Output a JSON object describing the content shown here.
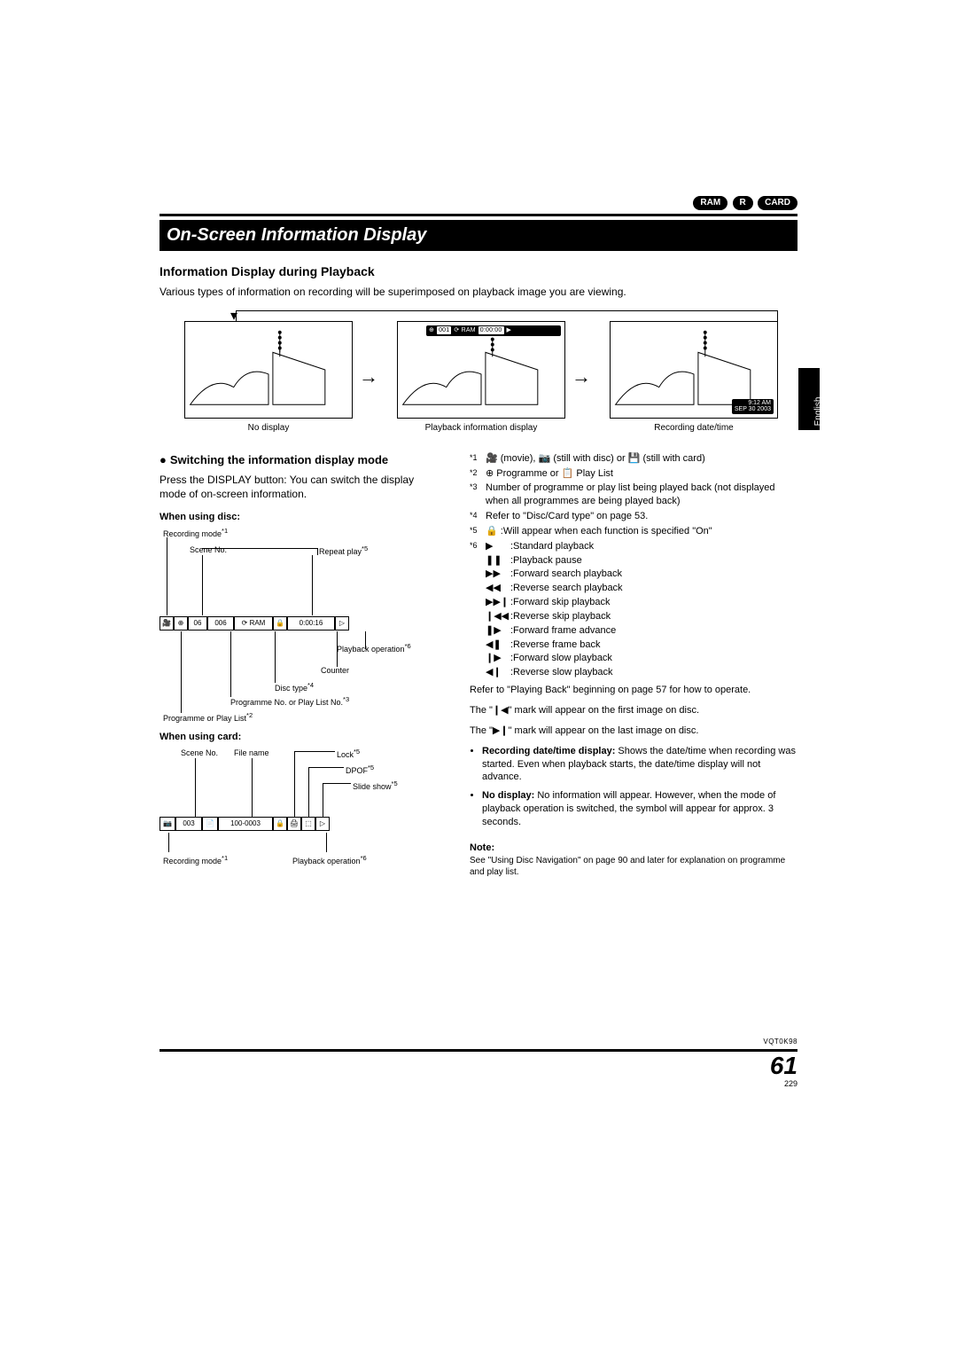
{
  "badges": {
    "ram": "RAM",
    "r": "R",
    "card": "CARD"
  },
  "title": "On-Screen Information Display",
  "section": "Information Display during Playback",
  "intro": "Various types of information on recording will be superimposed on playback image you are viewing.",
  "side_tab": "English",
  "captions": {
    "no_display": "No display",
    "playback_info": "Playback information display",
    "rec_datetime": "Recording date/time"
  },
  "banner": {
    "seg1": "⊕",
    "seg2": "001",
    "seg3": "⟳ RAM",
    "seg4": "0:00:00",
    "play": "▶"
  },
  "date_tag": {
    "line1": "9:12 AM",
    "line2": "SEP 30 2003"
  },
  "subheading": "Switching the information display mode",
  "sub_body": "Press the DISPLAY button: You can switch the display mode of on-screen information.",
  "disc_heading": "When using disc:",
  "disc_labels": {
    "recmode": "Recording mode",
    "recmode_sup": "*1",
    "scene": "Scene No.",
    "repeat": "Repeat play",
    "repeat_sup": "*5",
    "playop": "Playback operation",
    "playop_sup": "*6",
    "counter": "Counter",
    "disctype": "Disc type",
    "disctype_sup": "*4",
    "progno": "Programme No. or Play List No.",
    "progno_sup": "*3",
    "proglist": "Programme or Play List",
    "proglist_sup": "*2"
  },
  "disc_bar": {
    "c1": "🎥",
    "c2": "⊕",
    "c3": "06",
    "c4": "006",
    "c5": "⟳ RAM",
    "c6": "🔒",
    "c7": "0:00:16",
    "c8": "▷"
  },
  "card_heading": "When using card:",
  "card_labels": {
    "scene": "Scene No.",
    "file": "File name",
    "lock": "Lock",
    "lock_sup": "*5",
    "dpof": "DPOF",
    "dpof_sup": "*5",
    "slide": "Slide show",
    "slide_sup": "*5",
    "recmode": "Recording mode",
    "recmode_sup": "*1",
    "playop": "Playback operation",
    "playop_sup": "*6"
  },
  "card_bar": {
    "c1": "📷",
    "c2": "003",
    "c3": "📄",
    "c4": "100-0003",
    "c5": "🔒",
    "c6": "🖨",
    "c7": "⬚",
    "c8": "▷"
  },
  "footnotes": {
    "f1": {
      "sup": "*1",
      "text_a": "(movie),",
      "text_b": "(still with disc) or",
      "text_c": "(still with card)"
    },
    "f2": {
      "sup": "*2",
      "text": "⊕ Programme or 📋 Play List"
    },
    "f3": {
      "sup": "*3",
      "text": "Number of programme or play list being played back (not displayed when all programmes are being played back)"
    },
    "f4": {
      "sup": "*4",
      "text": "Refer to \"Disc/Card type\" on page 53."
    },
    "f5": {
      "sup": "*5",
      "text": ":Will appear when each function is specified \"On\""
    },
    "f6": {
      "sup": "*6"
    }
  },
  "iconlist": [
    {
      "icon": "▶",
      "text": ":Standard playback"
    },
    {
      "icon": "❚❚",
      "text": ":Playback pause"
    },
    {
      "icon": "▶▶",
      "text": ":Forward search playback"
    },
    {
      "icon": "◀◀",
      "text": ":Reverse search playback"
    },
    {
      "icon": "▶▶❙",
      "text": ":Forward skip playback"
    },
    {
      "icon": "❙◀◀",
      "text": ":Reverse skip playback"
    },
    {
      "icon": "❚▶",
      "text": ":Forward frame advance"
    },
    {
      "icon": "◀❚",
      "text": ":Reverse frame back"
    },
    {
      "icon": "❙▶",
      "text": ":Forward slow playback"
    },
    {
      "icon": "◀❙",
      "text": ":Reverse slow playback"
    }
  ],
  "refer_text": "Refer to \"Playing Back\" beginning on page 57 for how to operate.",
  "mark_first": "The \"❙◀\" mark will appear on the first image on disc.",
  "mark_last": "The \"▶❙\" mark will appear on the last image on disc.",
  "bullets": {
    "b1_head": "Recording date/time display:",
    "b1_body": " Shows the date/time when recording was started. Even when playback starts, the date/time display will not advance.",
    "b2_head": "No display:",
    "b2_body": " No information will appear. However, when the mode of playback operation is switched, the symbol will appear for approx. 3 seconds."
  },
  "note_h": "Note:",
  "note_t": "See \"Using Disc Navigation\" on page 90 and later for explanation on programme and play list.",
  "footer": {
    "docno": "VQT0K98",
    "page": "61",
    "subpage": "229"
  }
}
